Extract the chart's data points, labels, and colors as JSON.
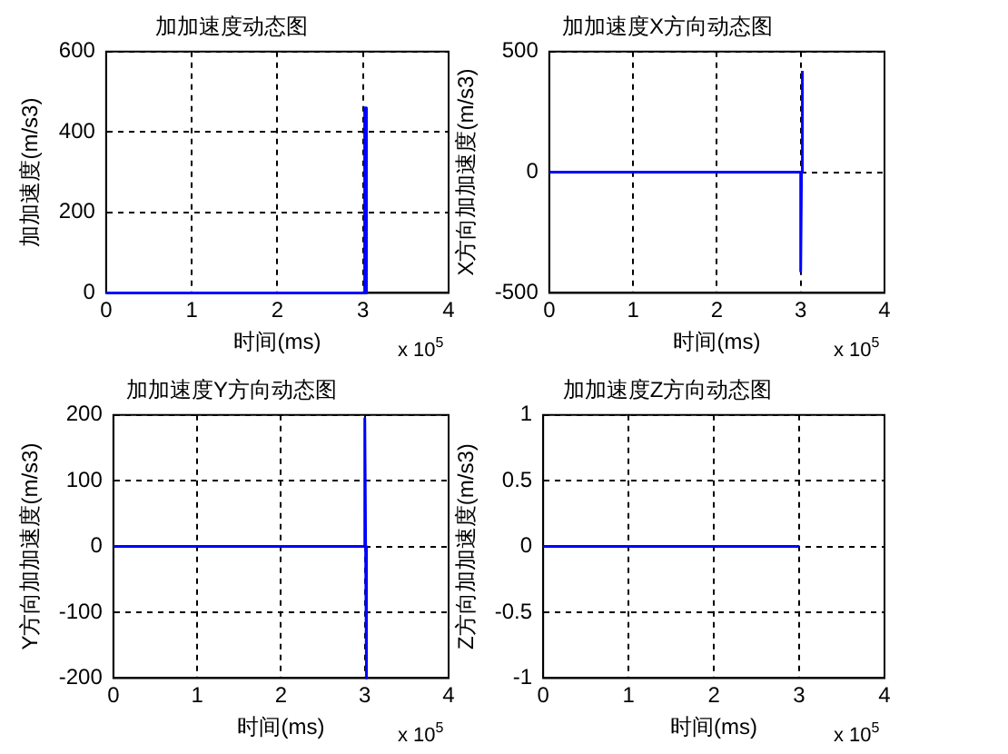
{
  "chart_data": [
    {
      "type": "line",
      "title": "加加速度动态图",
      "xlabel": "时间(ms)",
      "ylabel": "加加速度(m/s3)",
      "x": [
        0,
        3.02,
        3.02,
        3.04,
        3.04
      ],
      "series": [
        {
          "color": "#0000ff",
          "values": [
            0,
            0,
            460,
            460,
            0
          ]
        }
      ],
      "xlim": [
        0,
        4
      ],
      "xticks": [
        0,
        1,
        2,
        3,
        4
      ],
      "ylim": [
        0,
        600
      ],
      "yticks": [
        0,
        200,
        400,
        600
      ],
      "grid": true,
      "annotations": [
        "x 10$^{5}$"
      ]
    },
    {
      "type": "line",
      "title": "加加速度X方向动态图",
      "xlabel": "时间(ms)",
      "ylabel": "X方向加加速度(m/s3)",
      "x": [
        0,
        3.0,
        3.0,
        3.01,
        3.02,
        3.02
      ],
      "series": [
        {
          "color": "#0000ff",
          "values": [
            0,
            0,
            -410,
            0,
            0,
            420
          ]
        }
      ],
      "xlim": [
        0,
        4
      ],
      "xticks": [
        0,
        1,
        2,
        3,
        4
      ],
      "ylim": [
        -500,
        500
      ],
      "yticks": [
        -500,
        0,
        500
      ],
      "grid": true,
      "annotations": [
        "x 10$^{5}$"
      ]
    },
    {
      "type": "line",
      "title": "加加速度Y方向动态图",
      "xlabel": "时间(ms)",
      "ylabel": "Y方向加加速度(m/s3)",
      "x": [
        0,
        3.0,
        3.0,
        3.01,
        3.02,
        3.02
      ],
      "series": [
        {
          "color": "#0000ff",
          "values": [
            0,
            0,
            195,
            0,
            0,
            -200
          ]
        }
      ],
      "xlim": [
        0,
        4
      ],
      "xticks": [
        0,
        1,
        2,
        3,
        4
      ],
      "ylim": [
        -200,
        200
      ],
      "yticks": [
        -200,
        -100,
        0,
        100,
        200
      ],
      "grid": true,
      "annotations": [
        "x 10$^{5}$"
      ]
    },
    {
      "type": "line",
      "title": "加加速度Z方向动态图",
      "xlabel": "时间(ms)",
      "ylabel": "Z方向加加速度(m/s3)",
      "x": [
        0,
        3.0
      ],
      "series": [
        {
          "color": "#0000ff",
          "values": [
            0,
            0
          ]
        }
      ],
      "xlim": [
        0,
        4
      ],
      "xticks": [
        0,
        1,
        2,
        3,
        4
      ],
      "ylim": [
        -1,
        1
      ],
      "yticks": [
        -1,
        -0.5,
        0,
        0.5,
        1
      ],
      "grid": true,
      "annotations": [
        "x 10$^{5}$"
      ]
    }
  ]
}
